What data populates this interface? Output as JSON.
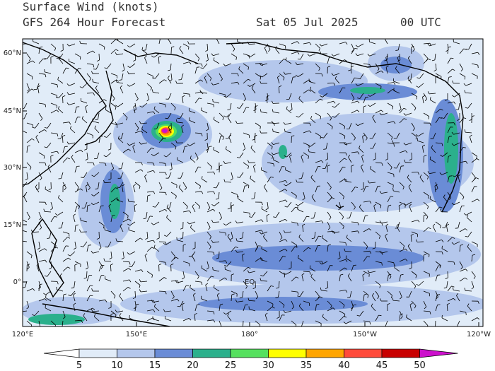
{
  "header": {
    "title": "Surface Wind (knots)",
    "subtitle": "GFS 264 Hour Forecast",
    "date": "Sat 05 Jul 2025",
    "time": "00 UTC"
  },
  "map": {
    "lat_labels": [
      "60°N",
      "45°N",
      "30°N",
      "15°N",
      "0°"
    ],
    "lon_labels": [
      "120°E",
      "150°E",
      "180°",
      "150°W",
      "120°W"
    ],
    "annotations": [
      "EQ"
    ]
  },
  "colorbar": {
    "ticks": [
      5,
      10,
      15,
      20,
      25,
      30,
      35,
      40,
      45,
      50
    ],
    "colors": [
      "#ffffff",
      "#e1ecf8",
      "#b4c7ec",
      "#6a8cd6",
      "#2bb08c",
      "#55e05e",
      "#ffff00",
      "#ffa500",
      "#ff4a3a",
      "#c80000",
      "#cc10cc"
    ]
  }
}
